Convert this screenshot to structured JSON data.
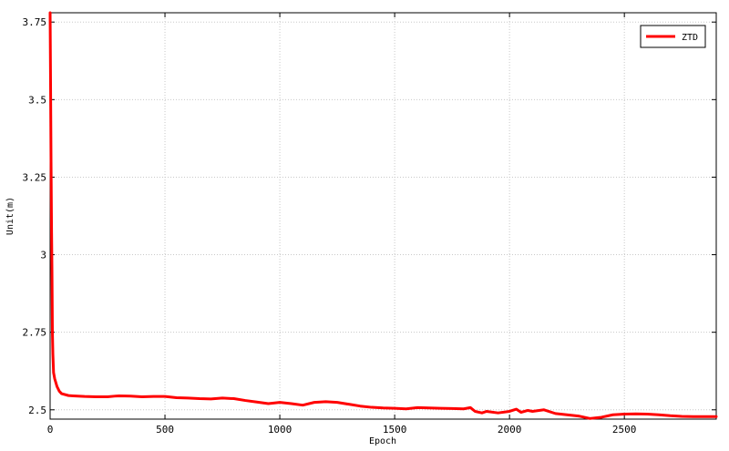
{
  "chart_data": {
    "type": "line",
    "xlabel": "Epoch",
    "ylabel": "Unit(m)",
    "xlim": [
      0,
      2900
    ],
    "ylim": [
      2.47,
      3.78
    ],
    "xticks": [
      0,
      500,
      1000,
      1500,
      2000,
      2500
    ],
    "yticks": [
      2.5,
      2.75,
      3,
      3.25,
      3.5,
      3.75
    ],
    "ytick_labels": [
      "2.5",
      "2.75",
      "3",
      "3.25",
      "3.5",
      "3.75"
    ],
    "grid": true,
    "legend_position": "top-right",
    "series": [
      {
        "name": "ZTD",
        "color": "#ff0000",
        "x": [
          0,
          2,
          4,
          6,
          8,
          10,
          12,
          15,
          20,
          30,
          40,
          50,
          80,
          100,
          150,
          200,
          250,
          280,
          300,
          350,
          400,
          450,
          500,
          550,
          600,
          650,
          700,
          750,
          800,
          850,
          900,
          950,
          1000,
          1050,
          1100,
          1150,
          1200,
          1250,
          1300,
          1350,
          1400,
          1450,
          1500,
          1550,
          1600,
          1650,
          1700,
          1750,
          1800,
          1830,
          1850,
          1880,
          1900,
          1950,
          2000,
          2030,
          2050,
          2080,
          2100,
          2150,
          2200,
          2250,
          2300,
          2350,
          2400,
          2450,
          2500,
          2550,
          2600,
          2650,
          2700,
          2750,
          2800,
          2850,
          2900
        ],
        "values": [
          3.78,
          3.55,
          3.3,
          3.1,
          2.95,
          2.75,
          2.68,
          2.62,
          2.6,
          2.575,
          2.56,
          2.552,
          2.546,
          2.545,
          2.543,
          2.542,
          2.542,
          2.544,
          2.545,
          2.544,
          2.542,
          2.543,
          2.543,
          2.539,
          2.538,
          2.536,
          2.535,
          2.538,
          2.536,
          2.53,
          2.525,
          2.52,
          2.524,
          2.52,
          2.515,
          2.524,
          2.526,
          2.524,
          2.518,
          2.512,
          2.508,
          2.506,
          2.505,
          2.503,
          2.507,
          2.506,
          2.505,
          2.504,
          2.503,
          2.507,
          2.495,
          2.49,
          2.495,
          2.49,
          2.495,
          2.502,
          2.492,
          2.498,
          2.495,
          2.5,
          2.488,
          2.484,
          2.48,
          2.472,
          2.476,
          2.484,
          2.486,
          2.487,
          2.486,
          2.484,
          2.481,
          2.479,
          2.478,
          2.478,
          2.478
        ]
      }
    ]
  }
}
